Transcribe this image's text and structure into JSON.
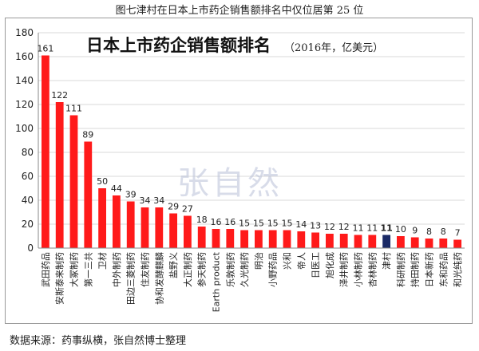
{
  "caption": "图七津村在日本上市药企销售额排名中仅位居第 25 位",
  "source": "数据来源：药事纵横，张自然博士整理",
  "watermark": "张自然",
  "colors": {
    "bar": "#ff1a1a",
    "highlight_bar": "#1a2a66",
    "highlight_label": "#e11a1a",
    "grid": "#d9d9d9"
  },
  "chart_data": {
    "type": "bar",
    "title": "日本上市药企销售额排名",
    "subtitle": "（2016年，亿美元）",
    "ylim": [
      0,
      180
    ],
    "yticks": [
      0,
      20,
      40,
      60,
      80,
      100,
      120,
      140,
      160,
      180
    ],
    "grid": true,
    "highlight": "津村",
    "categories": [
      "武田药品",
      "安斯泰来制药",
      "大冢制药",
      "第一三共",
      "卫材",
      "中外制药",
      "田边三菱制药",
      "住友制药",
      "协和发酵麒麟",
      "盐野义",
      "大正制药",
      "参天制药",
      "Earth product",
      "乐敦制药",
      "久光制药",
      "明治",
      "小野药品",
      "兴和",
      "帝人",
      "日医工",
      "旭化成",
      "泽井制药",
      "小林制药",
      "杏林制药",
      "津村",
      "科研制药",
      "持田制药",
      "日本新药",
      "东和药品",
      "和光纯药"
    ],
    "values": [
      161,
      122,
      111,
      89,
      50,
      44,
      39,
      34,
      34,
      29,
      27,
      18,
      16,
      16,
      15,
      15,
      15,
      15,
      14,
      13,
      12,
      12,
      11,
      11,
      11,
      10,
      9,
      8,
      8,
      7
    ]
  }
}
